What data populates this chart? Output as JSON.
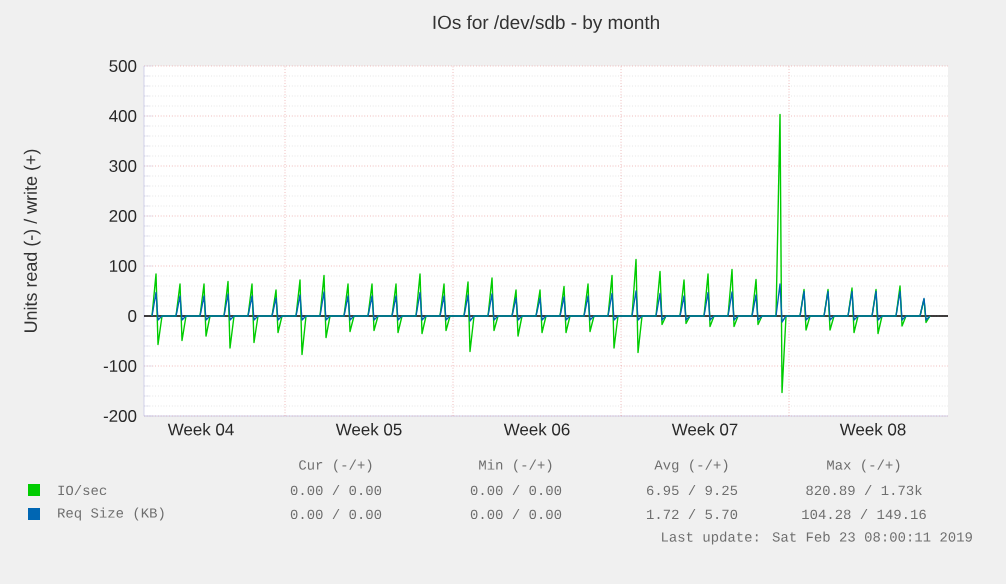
{
  "chart_data": {
    "type": "line",
    "title": "IOs for /dev/sdb - by month",
    "ylabel": "Units read (-) / write (+)",
    "x": [
      "2019-01-22T11:00",
      "2019-01-22T15:00",
      "2019-01-22T17:00",
      "2019-01-22T21:00",
      "2019-01-23T11:00",
      "2019-01-23T15:00",
      "2019-01-23T17:00",
      "2019-01-23T21:00",
      "2019-01-24T11:00",
      "2019-01-24T15:00",
      "2019-01-24T17:00",
      "2019-01-24T21:00",
      "2019-01-25T11:00",
      "2019-01-25T15:00",
      "2019-01-25T17:00",
      "2019-01-25T21:00",
      "2019-01-26T11:00",
      "2019-01-26T15:00",
      "2019-01-26T17:00",
      "2019-01-26T21:00",
      "2019-01-27T11:00",
      "2019-01-27T15:00",
      "2019-01-27T17:00",
      "2019-01-27T21:00",
      "2019-01-28T11:00",
      "2019-01-28T15:00",
      "2019-01-28T17:00",
      "2019-01-28T21:00",
      "2019-01-29T11:00",
      "2019-01-29T15:00",
      "2019-01-29T17:00",
      "2019-01-29T21:00",
      "2019-01-30T11:00",
      "2019-01-30T15:00",
      "2019-01-30T17:00",
      "2019-01-30T21:00",
      "2019-01-31T11:00",
      "2019-01-31T15:00",
      "2019-01-31T17:00",
      "2019-01-31T21:00",
      "2019-02-01T11:00",
      "2019-02-01T15:00",
      "2019-02-01T17:00",
      "2019-02-01T21:00",
      "2019-02-02T11:00",
      "2019-02-02T15:00",
      "2019-02-02T17:00",
      "2019-02-02T21:00",
      "2019-02-03T11:00",
      "2019-02-03T15:00",
      "2019-02-03T17:00",
      "2019-02-03T21:00",
      "2019-02-04T11:00",
      "2019-02-04T15:00",
      "2019-02-04T17:00",
      "2019-02-04T21:00",
      "2019-02-05T11:00",
      "2019-02-05T15:00",
      "2019-02-05T17:00",
      "2019-02-05T21:00",
      "2019-02-06T11:00",
      "2019-02-06T15:00",
      "2019-02-06T17:00",
      "2019-02-06T21:00",
      "2019-02-07T11:00",
      "2019-02-07T15:00",
      "2019-02-07T17:00",
      "2019-02-07T21:00",
      "2019-02-08T11:00",
      "2019-02-08T15:00",
      "2019-02-08T17:00",
      "2019-02-08T21:00",
      "2019-02-09T11:00",
      "2019-02-09T15:00",
      "2019-02-09T17:00",
      "2019-02-09T21:00",
      "2019-02-10T11:00",
      "2019-02-10T15:00",
      "2019-02-10T17:00",
      "2019-02-10T21:00",
      "2019-02-11T11:00",
      "2019-02-11T15:00",
      "2019-02-11T17:00",
      "2019-02-11T21:00",
      "2019-02-12T11:00",
      "2019-02-12T15:00",
      "2019-02-12T17:00",
      "2019-02-12T21:00",
      "2019-02-13T11:00",
      "2019-02-13T15:00",
      "2019-02-13T17:00",
      "2019-02-13T21:00",
      "2019-02-14T11:00",
      "2019-02-14T15:00",
      "2019-02-14T17:00",
      "2019-02-14T21:00",
      "2019-02-15T11:00",
      "2019-02-15T15:00",
      "2019-02-15T17:00",
      "2019-02-15T21:00",
      "2019-02-16T11:00",
      "2019-02-16T15:00",
      "2019-02-16T17:00",
      "2019-02-16T21:00",
      "2019-02-17T11:00",
      "2019-02-17T15:00",
      "2019-02-17T17:00",
      "2019-02-17T21:00",
      "2019-02-18T11:00",
      "2019-02-18T15:00",
      "2019-02-18T17:00",
      "2019-02-18T21:00",
      "2019-02-19T11:00",
      "2019-02-19T15:00",
      "2019-02-19T17:00",
      "2019-02-19T21:00",
      "2019-02-20T11:00",
      "2019-02-20T15:00",
      "2019-02-20T17:00",
      "2019-02-20T21:00",
      "2019-02-21T11:00",
      "2019-02-21T15:00",
      "2019-02-21T17:00",
      "2019-02-21T21:00",
      "2019-02-22T11:00",
      "2019-02-22T15:00",
      "2019-02-22T17:00",
      "2019-02-22T21:00",
      "2019-02-23T11:00",
      "2019-02-23T15:00",
      "2019-02-23T17:00",
      "2019-02-23T21:00"
    ],
    "series": [
      {
        "name": "IO/sec",
        "color": "#00cc00",
        "values": [
          0,
          84,
          -57,
          0,
          0,
          64,
          -49,
          0,
          0,
          64,
          -40,
          0,
          0,
          69,
          -64,
          0,
          0,
          64,
          -53,
          0,
          0,
          52,
          -33,
          0,
          0,
          72,
          -77,
          0,
          0,
          81,
          -43,
          0,
          0,
          64,
          -31,
          0,
          0,
          64,
          -29,
          0,
          0,
          64,
          -33,
          0,
          0,
          84,
          -35,
          0,
          0,
          64,
          -29,
          0,
          0,
          68,
          -71,
          0,
          0,
          76,
          -29,
          0,
          0,
          52,
          -40,
          0,
          0,
          52,
          -33,
          0,
          0,
          59,
          -33,
          0,
          0,
          64,
          -31,
          0,
          0,
          81,
          -64,
          0,
          0,
          113,
          -73,
          0,
          0,
          89,
          -17,
          0,
          0,
          72,
          -15,
          0,
          0,
          84,
          -21,
          0,
          0,
          93,
          -21,
          0,
          0,
          73,
          -17,
          0,
          0,
          403,
          -153,
          0,
          0,
          53,
          -28,
          0,
          0,
          53,
          -28,
          0,
          0,
          56,
          -33,
          0,
          0,
          53,
          -35,
          0,
          0,
          60,
          -20,
          0,
          0,
          33,
          -13,
          0
        ]
      },
      {
        "name": "Req Size (KB)",
        "color": "#0066b3",
        "values": [
          0,
          47,
          -8,
          0,
          0,
          40,
          -8,
          0,
          0,
          40,
          -8,
          0,
          0,
          44,
          -8,
          0,
          0,
          40,
          -8,
          0,
          0,
          36,
          -8,
          0,
          0,
          42,
          -8,
          0,
          0,
          48,
          -8,
          0,
          0,
          40,
          -8,
          0,
          0,
          40,
          -8,
          0,
          0,
          40,
          -8,
          0,
          0,
          47,
          -8,
          0,
          0,
          40,
          -8,
          0,
          0,
          42,
          -10,
          0,
          0,
          44,
          -8,
          0,
          0,
          36,
          -8,
          0,
          0,
          36,
          -8,
          0,
          0,
          38,
          -8,
          0,
          0,
          40,
          -8,
          0,
          0,
          45,
          -8,
          0,
          0,
          50,
          -8,
          0,
          0,
          45,
          -8,
          0,
          0,
          40,
          -8,
          0,
          0,
          47,
          -8,
          0,
          0,
          48,
          -8,
          0,
          0,
          42,
          -8,
          0,
          0,
          64,
          -12,
          0,
          0,
          49,
          -8,
          0,
          0,
          49,
          -8,
          0,
          0,
          49,
          -8,
          0,
          0,
          49,
          -8,
          0,
          0,
          49,
          -8,
          0,
          0,
          35,
          -8,
          0
        ]
      }
    ],
    "xlim": [
      "2019-01-22T03:00",
      "2019-02-24T15:00"
    ],
    "xticks": [
      {
        "value": "2019-01-24T12:00",
        "label": "Week 04"
      },
      {
        "value": "2019-01-28",
        "label": null
      },
      {
        "value": "2019-01-31T12:00",
        "label": "Week 05"
      },
      {
        "value": "2019-02-04",
        "label": null
      },
      {
        "value": "2019-02-07T12:00",
        "label": "Week 06"
      },
      {
        "value": "2019-02-11",
        "label": null
      },
      {
        "value": "2019-02-14T12:00",
        "label": "Week 07"
      },
      {
        "value": "2019-02-18",
        "label": null
      },
      {
        "value": "2019-02-21T12:00",
        "label": "Week 08"
      }
    ],
    "ylim": [
      -200,
      500
    ],
    "yticks": [
      -200,
      -100,
      0,
      100,
      200,
      300,
      400,
      500
    ],
    "ref_lines": [
      {
        "axis": "y",
        "value": 0,
        "color": "#000000"
      }
    ],
    "grid": true,
    "legend": "bottom",
    "annotations": [
      "Cur (-/+)",
      "Min (-/+)",
      "Avg (-/+)",
      "Max (-/+)",
      "0.00 / 0.00",
      "0.00 / 0.00",
      "6.95 / 9.25",
      "820.89 / 1.73k",
      "0.00 / 0.00",
      "0.00 / 0.00",
      "1.72 / 5.70",
      "104.28 / 149.16",
      "Last update: Sat Feb 23 08:00:11 2019"
    ]
  }
}
